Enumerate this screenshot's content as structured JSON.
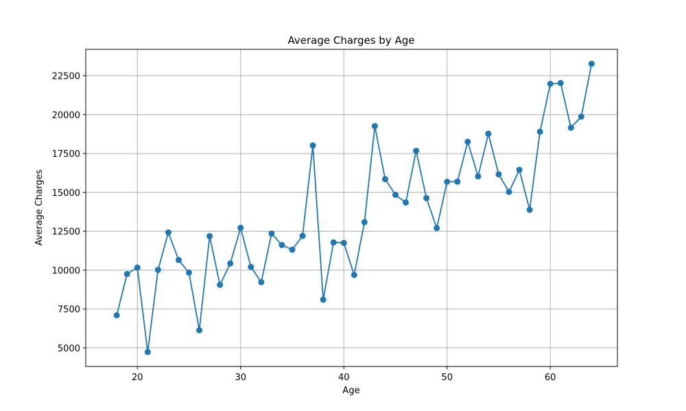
{
  "chart_data": {
    "type": "line",
    "title": "Average Charges by Age",
    "xlabel": "Age",
    "ylabel": "Average Charges",
    "xlim": [
      15,
      66.5
    ],
    "ylim": [
      3800,
      24200
    ],
    "xticks": [
      20,
      30,
      40,
      50,
      60
    ],
    "yticks": [
      5000,
      7500,
      10000,
      12500,
      15000,
      17500,
      20000,
      22500
    ],
    "grid": true,
    "series": [
      {
        "color": "#1f77b4",
        "marker": "circle",
        "x": [
          18,
          19,
          20,
          21,
          22,
          23,
          24,
          25,
          26,
          27,
          28,
          29,
          30,
          31,
          32,
          33,
          34,
          35,
          36,
          37,
          38,
          39,
          40,
          41,
          42,
          43,
          44,
          45,
          46,
          47,
          48,
          49,
          50,
          51,
          52,
          53,
          54,
          55,
          56,
          57,
          58,
          59,
          60,
          61,
          62,
          63,
          64
        ],
        "y": [
          7090,
          9750,
          10160,
          4730,
          10010,
          12420,
          10650,
          9840,
          6130,
          12180,
          9050,
          10430,
          12720,
          10200,
          9220,
          12350,
          11610,
          11310,
          12200,
          18020,
          8100,
          11780,
          11750,
          9690,
          13080,
          19260,
          15850,
          14840,
          14350,
          17670,
          14630,
          12700,
          15680,
          15690,
          18250,
          16030,
          18770,
          16160,
          15030,
          16450,
          13880,
          18900,
          21980,
          22030,
          19160,
          19870,
          23270
        ]
      }
    ]
  }
}
